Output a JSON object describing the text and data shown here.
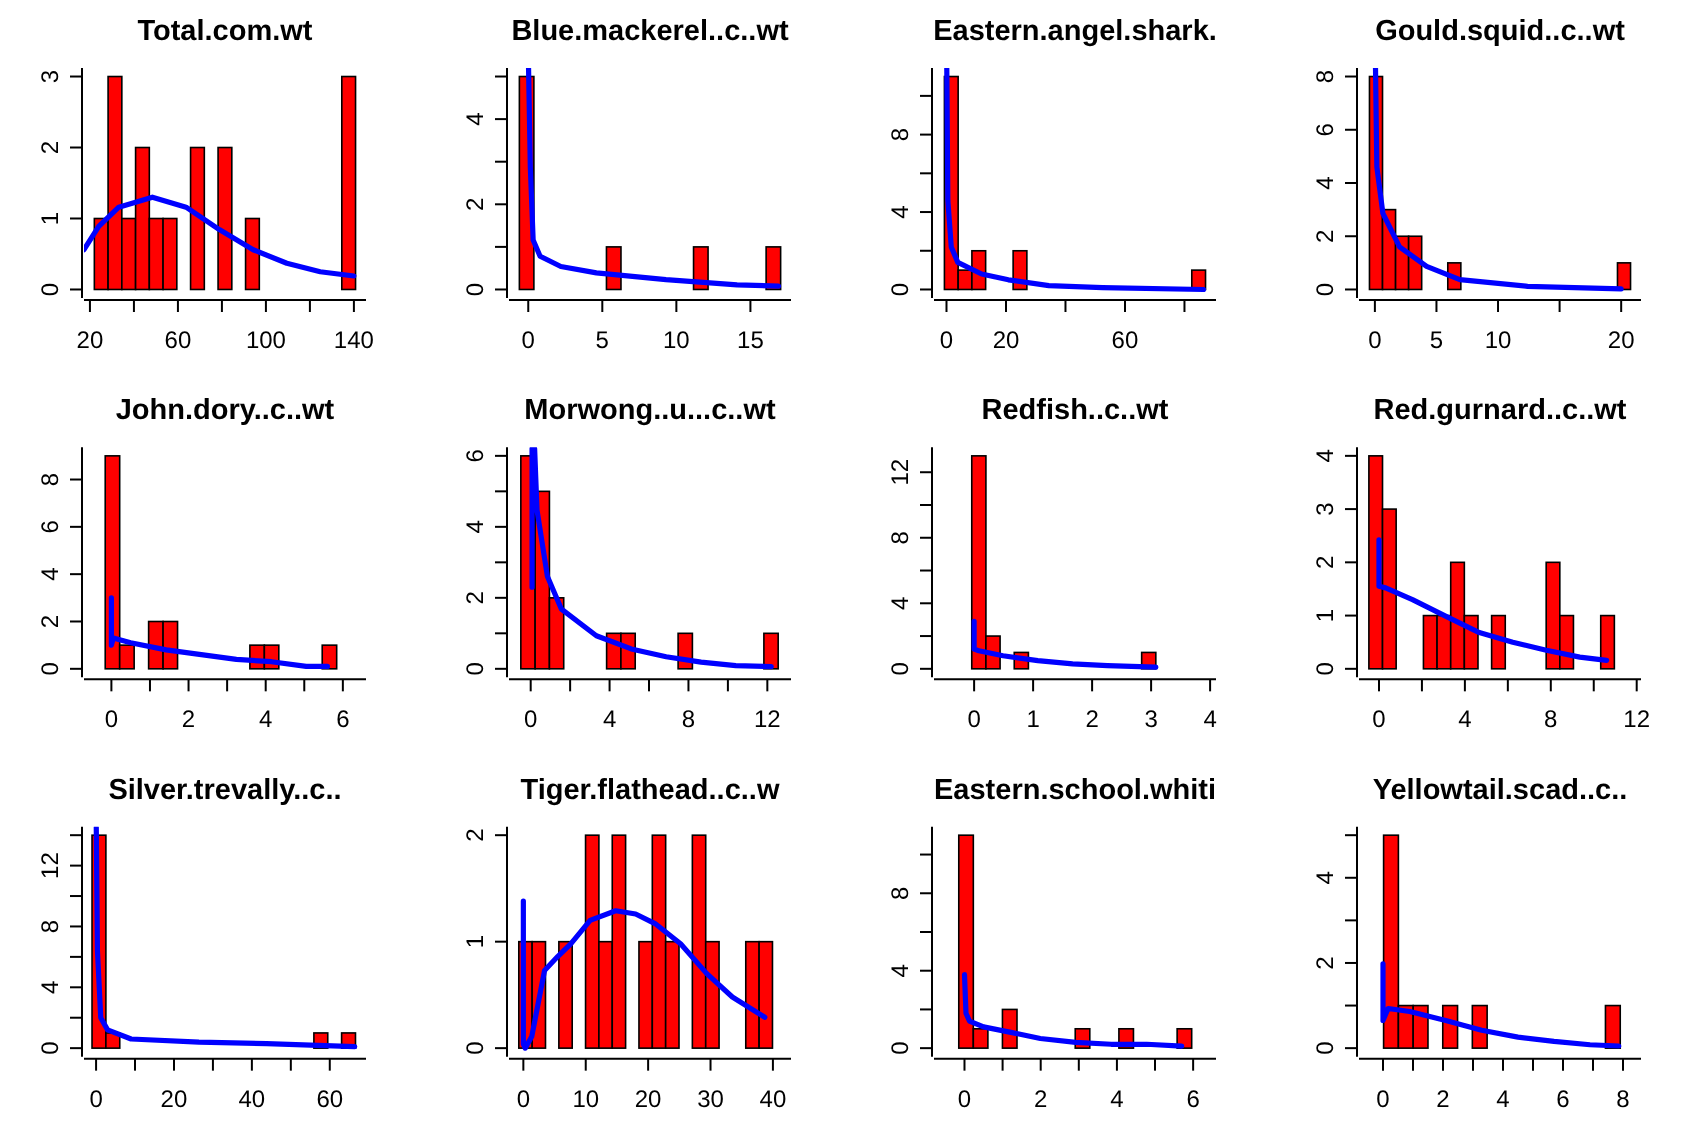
{
  "chart_data": [
    {
      "type": "histogram",
      "title": "Total.com.wt",
      "bins": [
        22,
        28.25,
        34.5,
        40.75,
        47,
        53.25,
        59.5,
        65.75,
        72,
        78.25,
        84.5,
        90.75,
        97,
        103.25,
        109.5,
        115.75,
        122,
        128.25,
        134.5,
        140.75
      ],
      "values": [
        1,
        3,
        1,
        2,
        1,
        1,
        0,
        2,
        0,
        2,
        0,
        1,
        0,
        0,
        0,
        0,
        0,
        0,
        3
      ],
      "color": "#ff0000",
      "xlim": [
        17.3,
        145.5
      ],
      "xticks": [
        20,
        {
          "value": 40,
          "label": null
        },
        60,
        {
          "value": 80,
          "label": null
        },
        100,
        {
          "value": 120,
          "label": null
        },
        140
      ],
      "ylim": [
        -0.12,
        3.12
      ],
      "yticks": [
        0,
        1,
        2,
        3
      ],
      "series": [
        {
          "type": "line",
          "color": "#0000ff",
          "x": [
            17.3,
            24,
            33.1,
            48.4,
            63.7,
            79,
            94.2,
            109.5,
            124.7,
            140
          ],
          "values": [
            0.56,
            0.89,
            1.16,
            1.3,
            1.16,
            0.84,
            0.56,
            0.37,
            0.25,
            0.19
          ]
        }
      ]
    },
    {
      "type": "histogram",
      "title": "Blue.mackerel..c..wt",
      "bins": [
        -0.6,
        0.38,
        1.36,
        2.34,
        3.32,
        4.3,
        5.28,
        6.26,
        7.24,
        8.22,
        9.2,
        10.18,
        11.16,
        12.14,
        13.12,
        14.1,
        15.08,
        16.06,
        17.04
      ],
      "values": [
        5,
        0,
        0,
        0,
        0,
        0,
        1,
        0,
        0,
        0,
        0,
        0,
        1,
        0,
        0,
        0,
        0,
        1
      ],
      "color": "#ff0000",
      "xlim": [
        -1.3,
        17.74
      ],
      "xticks": [
        0,
        5,
        10,
        15
      ],
      "ylim": [
        -0.2,
        5.2
      ],
      "yticks": [
        0,
        {
          "value": 1,
          "label": null
        },
        2,
        {
          "value": 3,
          "label": null
        },
        4,
        {
          "value": 5,
          "label": null
        }
      ],
      "series": [
        {
          "type": "line",
          "color": "#0000ff",
          "x": [
            0.02,
            0.14,
            0.33,
            0.8,
            2.2,
            4.6,
            9.3,
            14.1,
            16.9
          ],
          "values": [
            5.2,
            2.87,
            1.16,
            0.78,
            0.54,
            0.39,
            0.23,
            0.11,
            0.08
          ]
        }
      ]
    },
    {
      "type": "histogram",
      "title": "Eastern.angel.shark.",
      "bins": [
        -0.7,
        3.92,
        8.54,
        13.16,
        17.78,
        22.4,
        27.02,
        31.64,
        36.26,
        40.88,
        45.5,
        50.12,
        54.74,
        59.36,
        63.98,
        68.6,
        73.22,
        77.84,
        82.46,
        87.08
      ],
      "values": [
        11,
        1,
        2,
        0,
        0,
        2,
        0,
        0,
        0,
        0,
        0,
        0,
        0,
        0,
        0,
        0,
        0,
        0,
        1
      ],
      "color": "#ff0000",
      "xlim": [
        -4.2,
        90.6
      ],
      "xticks": [
        0,
        20,
        {
          "value": 40,
          "label": null
        },
        60,
        {
          "value": 80,
          "label": null
        }
      ],
      "ylim": [
        -0.44,
        11.44
      ],
      "yticks": [
        0,
        {
          "value": 2,
          "label": null
        },
        4,
        {
          "value": 6,
          "label": null
        },
        8,
        {
          "value": 10,
          "label": null
        }
      ],
      "series": [
        {
          "type": "line",
          "color": "#0000ff",
          "x": [
            0.1,
            0.45,
            1.6,
            3.8,
            11.8,
            20.8,
            34.4,
            52.5,
            86.4
          ],
          "values": [
            11.4,
            4.6,
            2.2,
            1.4,
            0.8,
            0.5,
            0.2,
            0.1,
            0
          ]
        }
      ]
    },
    {
      "type": "histogram",
      "title": "Gould.squid..c..wt",
      "bins": [
        -0.44,
        0.62,
        1.68,
        2.74,
        3.8,
        4.86,
        5.92,
        6.98,
        8.04,
        9.1,
        10.16,
        11.22,
        12.28,
        13.34,
        14.4,
        15.46,
        16.52,
        17.58,
        18.64,
        19.7,
        20.76
      ],
      "values": [
        8,
        3,
        2,
        2,
        0,
        0,
        1,
        0,
        0,
        0,
        0,
        0,
        0,
        0,
        0,
        0,
        0,
        0,
        0,
        1
      ],
      "color": "#ff0000",
      "xlim": [
        -1.29,
        21.61
      ],
      "xticks": [
        0,
        5,
        10,
        {
          "value": 15,
          "label": null
        },
        20
      ],
      "ylim": [
        -0.32,
        8.32
      ],
      "yticks": [
        0,
        2,
        4,
        6,
        8
      ],
      "series": [
        {
          "type": "line",
          "color": "#0000ff",
          "x": [
            0.05,
            0.16,
            0.65,
            2,
            4.2,
            6.9,
            12.4,
            20
          ],
          "values": [
            8.32,
            4.6,
            2.86,
            1.6,
            0.87,
            0.37,
            0.12,
            0.02
          ]
        }
      ]
    },
    {
      "type": "histogram",
      "title": "John.dory..c..wt",
      "bins": [
        -0.16,
        0.215,
        0.59,
        0.965,
        1.34,
        1.715,
        2.09,
        2.465,
        2.84,
        3.215,
        3.59,
        3.965,
        4.34,
        4.715,
        5.09,
        5.465,
        5.84
      ],
      "values": [
        9,
        1,
        0,
        2,
        2,
        0,
        0,
        0,
        0,
        0,
        1,
        1,
        0,
        0,
        0,
        1
      ],
      "color": "#ff0000",
      "xlim": [
        -0.71,
        6.6
      ],
      "xticks": [
        0,
        {
          "value": 1,
          "label": null
        },
        2,
        {
          "value": 3,
          "label": null
        },
        4,
        {
          "value": 5,
          "label": null
        },
        6
      ],
      "ylim": [
        -0.36,
        9.36
      ],
      "yticks": [
        0,
        2,
        4,
        6,
        8
      ],
      "series": [
        {
          "type": "line",
          "color": "#0000ff",
          "x": [
            0,
            0,
            0.05,
            0.5,
            1.42,
            2.33,
            3.24,
            4.15,
            5.05,
            5.6
          ],
          "values": [
            3,
            1,
            1.3,
            1.1,
            0.8,
            0.6,
            0.4,
            0.3,
            0.1,
            0.1
          ]
        }
      ]
    },
    {
      "type": "histogram",
      "title": "Morwong..u...c..wt",
      "bins": [
        -0.5,
        0.225,
        0.95,
        1.675,
        2.4,
        3.125,
        3.85,
        4.575,
        5.3,
        6.025,
        6.75,
        7.475,
        8.2,
        8.925,
        9.65,
        10.375,
        11.1,
        11.825,
        12.55
      ],
      "values": [
        6,
        5,
        2,
        0,
        0,
        0,
        1,
        1,
        0,
        0,
        0,
        1,
        0,
        0,
        0,
        0,
        0,
        1
      ],
      "color": "#ff0000",
      "xlim": [
        -1.1,
        13.2
      ],
      "xticks": [
        0,
        {
          "value": 2,
          "label": null
        },
        4,
        {
          "value": 6,
          "label": null
        },
        8,
        {
          "value": 10,
          "label": null
        },
        12
      ],
      "ylim": [
        -0.24,
        6.24
      ],
      "yticks": [
        0,
        {
          "value": 1,
          "label": null
        },
        2,
        {
          "value": 3,
          "label": null
        },
        4,
        {
          "value": 5,
          "label": null
        },
        6
      ],
      "series": [
        {
          "type": "line",
          "color": "#0000ff",
          "x": [
            0.07,
            0.07,
            0.2,
            0.32,
            0.85,
            1.56,
            3.33,
            5.1,
            6.87,
            8.64,
            10.4,
            12.2
          ],
          "values": [
            2.3,
            6.2,
            6.2,
            4.47,
            2.6,
            1.68,
            0.93,
            0.56,
            0.34,
            0.19,
            0.09,
            0.06
          ]
        }
      ]
    },
    {
      "type": "histogram",
      "title": "Redfish..c..wt",
      "bins": [
        -0.04,
        0.2,
        0.44,
        0.68,
        0.92,
        1.16,
        1.4,
        1.64,
        1.88,
        2.12,
        2.36,
        2.6,
        2.84,
        3.08
      ],
      "values": [
        13,
        2,
        0,
        1,
        0,
        0,
        0,
        0,
        0,
        0,
        0,
        0,
        1
      ],
      "color": "#ff0000",
      "xlim": [
        -0.68,
        4.1
      ],
      "xticks": [
        0,
        1,
        2,
        3,
        4
      ],
      "ylim": [
        -0.52,
        13.52
      ],
      "yticks": [
        0,
        {
          "value": 2,
          "label": null
        },
        4,
        {
          "value": 6,
          "label": null
        },
        8,
        {
          "value": 10,
          "label": null
        },
        12
      ],
      "series": [
        {
          "type": "line",
          "color": "#0000ff",
          "x": [
            0,
            0,
            0.08,
            0.49,
            1.08,
            1.67,
            2.26,
            3.08
          ],
          "values": [
            2.9,
            1.2,
            1.1,
            0.8,
            0.5,
            0.3,
            0.2,
            0.1
          ]
        }
      ]
    },
    {
      "type": "histogram",
      "title": "Red.gurnard..c..wt",
      "bins": [
        -0.47,
        0.165,
        0.8,
        1.435,
        2.07,
        2.705,
        3.34,
        3.975,
        4.61,
        5.245,
        5.88,
        6.515,
        7.15,
        7.785,
        8.42,
        9.055,
        9.69,
        10.325,
        10.96
      ],
      "values": [
        4,
        3,
        0,
        0,
        1,
        1,
        2,
        1,
        0,
        1,
        0,
        0,
        0,
        2,
        1,
        0,
        0,
        1
      ],
      "color": "#ff0000",
      "xlim": [
        -0.93,
        12.2
      ],
      "xticks": [
        0,
        {
          "value": 2,
          "label": null
        },
        4,
        {
          "value": 6,
          "label": null
        },
        8,
        {
          "value": 10,
          "label": null
        },
        12
      ],
      "ylim": [
        -0.16,
        4.16
      ],
      "yticks": [
        0,
        1,
        2,
        3,
        4
      ],
      "series": [
        {
          "type": "line",
          "color": "#0000ff",
          "x": [
            0,
            0,
            0.31,
            1.56,
            3.1,
            4.67,
            6.23,
            7.79,
            9.35,
            10.6
          ],
          "values": [
            2.42,
            1.55,
            1.52,
            1.3,
            0.99,
            0.68,
            0.5,
            0.35,
            0.22,
            0.16
          ]
        }
      ]
    },
    {
      "type": "histogram",
      "title": "Silver.trevally..c..",
      "bins": [
        -1.04,
        2.52,
        6.08,
        9.64,
        13.2,
        16.76,
        20.32,
        23.88,
        27.44,
        31,
        34.56,
        38.12,
        41.68,
        45.24,
        48.8,
        52.36,
        55.92,
        59.48,
        63.04,
        66.6
      ],
      "values": [
        14,
        1,
        0,
        0,
        0,
        0,
        0,
        0,
        0,
        0,
        0,
        0,
        0,
        0,
        0,
        0,
        1,
        0,
        1
      ],
      "color": "#ff0000",
      "xlim": [
        -3.1,
        69.3
      ],
      "xticks": [
        0,
        {
          "value": 10,
          "label": null
        },
        20,
        {
          "value": 30,
          "label": null
        },
        40,
        {
          "value": 50,
          "label": null
        },
        60
      ],
      "ylim": [
        -0.56,
        14.56
      ],
      "yticks": [
        0,
        {
          "value": 2,
          "label": null
        },
        4,
        {
          "value": 6,
          "label": null
        },
        8,
        {
          "value": 10,
          "label": null
        },
        12,
        {
          "value": 14,
          "label": null
        }
      ],
      "series": [
        {
          "type": "line",
          "color": "#0000ff",
          "x": [
            0.05,
            0.35,
            1.2,
            2.96,
            9,
            26.4,
            43.8,
            66.4
          ],
          "values": [
            14.5,
            6.4,
            2,
            1.2,
            0.6,
            0.4,
            0.3,
            0.1
          ]
        }
      ]
    },
    {
      "type": "histogram",
      "title": "Tiger.flathead..c..w",
      "bins": [
        -0.73,
        1.41,
        3.55,
        5.69,
        7.83,
        9.97,
        12.11,
        14.25,
        16.39,
        18.53,
        20.67,
        22.81,
        24.95,
        27.09,
        29.23,
        31.37,
        33.51,
        35.65,
        37.79,
        39.93
      ],
      "values": [
        1,
        1,
        0,
        1,
        0,
        2,
        1,
        2,
        0,
        1,
        2,
        1,
        0,
        2,
        1,
        0,
        0,
        1,
        1
      ],
      "color": "#ff0000",
      "xlim": [
        -2.3,
        42.9
      ],
      "xticks": [
        0,
        10,
        20,
        30,
        40
      ],
      "ylim": [
        -0.08,
        2.08
      ],
      "yticks": [
        0,
        1,
        2
      ],
      "series": [
        {
          "type": "line",
          "color": "#0000ff",
          "x": [
            0,
            0,
            0.3,
            1.35,
            3.4,
            5.5,
            7.6,
            10.7,
            14.8,
            18,
            21.1,
            25.2,
            29.4,
            33.5,
            38.7
          ],
          "values": [
            1.38,
            0.04,
            0,
            0.11,
            0.73,
            0.86,
            0.98,
            1.2,
            1.29,
            1.26,
            1.17,
            0.98,
            0.7,
            0.48,
            0.29
          ]
        }
      ]
    },
    {
      "type": "histogram",
      "title": "Eastern.school.whiti",
      "bins": [
        -0.15,
        0.232,
        0.614,
        0.996,
        1.378,
        1.76,
        2.142,
        2.524,
        2.906,
        3.288,
        3.67,
        4.052,
        4.434,
        4.816,
        5.198,
        5.58,
        5.962
      ],
      "values": [
        11,
        1,
        0,
        2,
        0,
        0,
        0,
        0,
        1,
        0,
        0,
        1,
        0,
        0,
        0,
        1
      ],
      "color": "#ff0000",
      "xlim": [
        -0.8,
        6.6
      ],
      "xticks": [
        0,
        {
          "value": 1,
          "label": null
        },
        2,
        {
          "value": 3,
          "label": null
        },
        4,
        {
          "value": 5,
          "label": null
        },
        6
      ],
      "ylim": [
        -0.44,
        11.44
      ],
      "yticks": [
        0,
        {
          "value": 2,
          "label": null
        },
        4,
        {
          "value": 6,
          "label": null
        },
        8,
        {
          "value": 10,
          "label": null
        }
      ],
      "series": [
        {
          "type": "line",
          "color": "#0000ff",
          "x": [
            0,
            0.04,
            0.13,
            0.5,
            1.25,
            1.99,
            2.92,
            3.85,
            4.78,
            5.7
          ],
          "values": [
            3.8,
            1.8,
            1.4,
            1.1,
            0.8,
            0.5,
            0.3,
            0.2,
            0.2,
            0.1
          ]
        }
      ]
    },
    {
      "type": "histogram",
      "title": "Yellowtail.scad..c..",
      "bins": [
        0.02,
        0.513,
        1.006,
        1.499,
        1.992,
        2.485,
        2.978,
        3.471,
        3.964,
        4.457,
        4.95,
        5.443,
        5.936,
        6.429,
        6.922,
        7.415,
        7.908
      ],
      "values": [
        5,
        1,
        1,
        0,
        1,
        0,
        1,
        0,
        0,
        0,
        0,
        0,
        0,
        0,
        0,
        1
      ],
      "color": "#ff0000",
      "xlim": [
        -0.8,
        8.6
      ],
      "xticks": [
        0,
        {
          "value": 1,
          "label": null
        },
        2,
        {
          "value": 3,
          "label": null
        },
        4,
        {
          "value": 5,
          "label": null
        },
        6,
        {
          "value": 7,
          "label": null
        },
        8
      ],
      "ylim": [
        -0.2,
        5.2
      ],
      "yticks": [
        0,
        {
          "value": 1,
          "label": null
        },
        2,
        {
          "value": 3,
          "label": null
        },
        4,
        {
          "value": 5,
          "label": null
        }
      ],
      "series": [
        {
          "type": "line",
          "color": "#0000ff",
          "x": [
            0,
            0,
            0.17,
            0.89,
            2.09,
            3.29,
            4.5,
            5.7,
            6.9,
            7.86
          ],
          "values": [
            1.98,
            0.65,
            0.93,
            0.86,
            0.65,
            0.42,
            0.26,
            0.16,
            0.08,
            0.05
          ]
        }
      ]
    }
  ]
}
